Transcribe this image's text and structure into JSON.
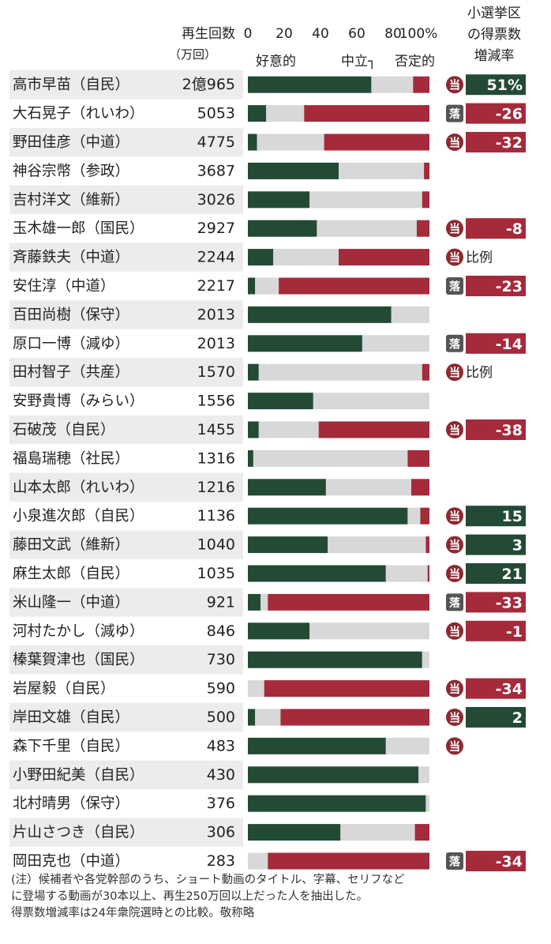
{
  "header": {
    "plays_label": "再生回数",
    "plays_unit": "（万回）",
    "vote_header": [
      "小選挙区",
      "の得票数",
      "増減率"
    ],
    "legend": {
      "favorable": "好意的",
      "neutral": "中立┐",
      "negative": "否定的"
    }
  },
  "colors": {
    "favorable": "#234a34",
    "neutral": "#d8d8d8",
    "negative": "#a52a3a",
    "row_shade": "#ececec",
    "win_badge": "#8c2a30",
    "lose_badge": "#555555"
  },
  "chart_data": {
    "type": "bar",
    "stacked": true,
    "orientation": "horizontal",
    "xlim": [
      0,
      100
    ],
    "x_ticks": [
      "0",
      "20",
      "40",
      "60",
      "80",
      "100%"
    ],
    "series_names": [
      "好意的",
      "中立",
      "否定的"
    ],
    "rows": [
      {
        "name": "高市早苗（自民）",
        "plays": "2億965",
        "fav": 68,
        "neu": 23,
        "neg": 9,
        "badge": "当",
        "change": "51%"
      },
      {
        "name": "大石晃子（れいわ）",
        "plays": "5053",
        "fav": 10,
        "neu": 21,
        "neg": 69,
        "badge": "落",
        "change": "-26"
      },
      {
        "name": "野田佳彦（中道）",
        "plays": "4775",
        "fav": 5,
        "neu": 37,
        "neg": 58,
        "badge": "当",
        "change": "-32"
      },
      {
        "name": "神谷宗幣（参政）",
        "plays": "3687",
        "fav": 50,
        "neu": 47,
        "neg": 3,
        "badge": "",
        "change": ""
      },
      {
        "name": "吉村洋文（維新）",
        "plays": "3026",
        "fav": 34,
        "neu": 62,
        "neg": 4,
        "badge": "",
        "change": ""
      },
      {
        "name": "玉木雄一郎（国民）",
        "plays": "2927",
        "fav": 38,
        "neu": 55,
        "neg": 7,
        "badge": "当",
        "change": "-8"
      },
      {
        "name": "斉藤鉄夫（中道）",
        "plays": "2244",
        "fav": 14,
        "neu": 36,
        "neg": 50,
        "badge": "当",
        "change": "比例"
      },
      {
        "name": "安住淳（中道）",
        "plays": "2217",
        "fav": 4,
        "neu": 13,
        "neg": 83,
        "badge": "落",
        "change": "-23"
      },
      {
        "name": "百田尚樹（保守）",
        "plays": "2013",
        "fav": 79,
        "neu": 21,
        "neg": 0,
        "badge": "",
        "change": ""
      },
      {
        "name": "原口一博（減ゆ）",
        "plays": "2013",
        "fav": 63,
        "neu": 37,
        "neg": 0,
        "badge": "落",
        "change": "-14"
      },
      {
        "name": "田村智子（共産）",
        "plays": "1570",
        "fav": 6,
        "neu": 90,
        "neg": 4,
        "badge": "当",
        "change": "比例"
      },
      {
        "name": "安野貴博（みらい）",
        "plays": "1556",
        "fav": 36,
        "neu": 64,
        "neg": 0,
        "badge": "",
        "change": ""
      },
      {
        "name": "石破茂（自民）",
        "plays": "1455",
        "fav": 6,
        "neu": 33,
        "neg": 61,
        "badge": "当",
        "change": "-38"
      },
      {
        "name": "福島瑞穂（社民）",
        "plays": "1316",
        "fav": 3,
        "neu": 85,
        "neg": 12,
        "badge": "",
        "change": ""
      },
      {
        "name": "山本太郎（れいわ）",
        "plays": "1216",
        "fav": 43,
        "neu": 47,
        "neg": 10,
        "badge": "",
        "change": ""
      },
      {
        "name": "小泉進次郎（自民）",
        "plays": "1136",
        "fav": 88,
        "neu": 7,
        "neg": 5,
        "badge": "当",
        "change": "15"
      },
      {
        "name": "藤田文武（維新）",
        "plays": "1040",
        "fav": 44,
        "neu": 54,
        "neg": 2,
        "badge": "当",
        "change": "3"
      },
      {
        "name": "麻生太郎（自民）",
        "plays": "1035",
        "fav": 76,
        "neu": 23,
        "neg": 1,
        "badge": "当",
        "change": "21"
      },
      {
        "name": "米山隆一（中道）",
        "plays": "921",
        "fav": 7,
        "neu": 4,
        "neg": 89,
        "badge": "落",
        "change": "-33"
      },
      {
        "name": "河村たかし（減ゆ）",
        "plays": "846",
        "fav": 34,
        "neu": 66,
        "neg": 0,
        "badge": "当",
        "change": "-1"
      },
      {
        "name": "榛葉賀津也（国民）",
        "plays": "730",
        "fav": 96,
        "neu": 4,
        "neg": 0,
        "badge": "",
        "change": ""
      },
      {
        "name": "岩屋毅（自民）",
        "plays": "590",
        "fav": 0,
        "neu": 9,
        "neg": 91,
        "badge": "当",
        "change": "-34"
      },
      {
        "name": "岸田文雄（自民）",
        "plays": "500",
        "fav": 4,
        "neu": 14,
        "neg": 82,
        "badge": "当",
        "change": "2"
      },
      {
        "name": "森下千里（自民）",
        "plays": "483",
        "fav": 76,
        "neu": 24,
        "neg": 0,
        "badge": "当",
        "change": ""
      },
      {
        "name": "小野田紀美（自民）",
        "plays": "430",
        "fav": 94,
        "neu": 6,
        "neg": 0,
        "badge": "",
        "change": ""
      },
      {
        "name": "北村晴男（保守）",
        "plays": "376",
        "fav": 98,
        "neu": 2,
        "neg": 0,
        "badge": "",
        "change": ""
      },
      {
        "name": "片山さつき（自民）",
        "plays": "306",
        "fav": 51,
        "neu": 41,
        "neg": 8,
        "badge": "",
        "change": ""
      },
      {
        "name": "岡田克也（中道）",
        "plays": "283",
        "fav": 0,
        "neu": 11,
        "neg": 89,
        "badge": "落",
        "change": "-34"
      }
    ]
  },
  "notes": [
    "(注）候補者や各党幹部のうち、ショート動画のタイトル、字幕、セリフなど",
    "に登場する動画が30本以上、再生250万回以上だった人を抽出した。",
    "得票数増減率は24年衆院選時との比較。敬称略"
  ]
}
